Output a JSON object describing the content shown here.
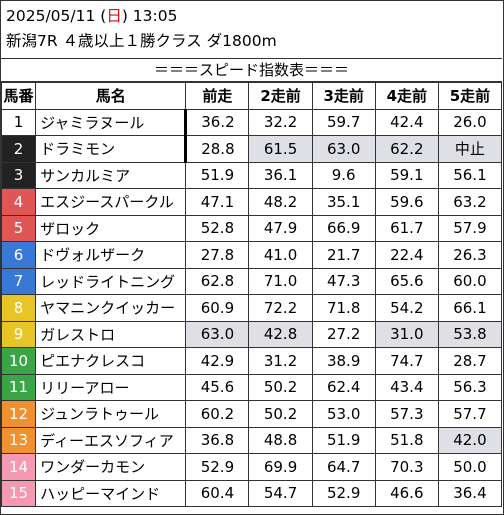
{
  "header": {
    "date": "2025/05/11 (",
    "day": "日",
    "time_suffix": ") 13:05",
    "race": "新潟7R ４歳以上１勝クラス ダ1800m"
  },
  "title": "＝＝＝スピード指数表＝＝＝",
  "columns": [
    "馬番",
    "馬名",
    "前走",
    "2走前",
    "3走前",
    "4走前",
    "5走前"
  ],
  "colors": {
    "frame_1": "#ffffff",
    "frame_2": "#222222",
    "frame_3": "#d23434",
    "frame_4": "#2f6fd1",
    "frame_5": "#e6c21c",
    "frame_6": "#2e9b3a",
    "frame_7": "#ee8a2a",
    "frame_8": "#f28aa4",
    "highlight": "#dfe0e6"
  },
  "rows": [
    {
      "no": "1",
      "name": "ジャミラヌール",
      "v": [
        "36.2",
        "32.2",
        "59.7",
        "42.4",
        "26.0"
      ],
      "hl": [],
      "bar": true,
      "bg": "#ffffff",
      "fg": "#000000"
    },
    {
      "no": "2",
      "name": "ドラミモン",
      "v": [
        "28.8",
        "61.5",
        "63.0",
        "62.2",
        "中止"
      ],
      "hl": [
        1,
        2,
        3,
        4
      ],
      "bar": true,
      "bg": "#222222",
      "fg": "#ffffff"
    },
    {
      "no": "3",
      "name": "サンカルミア",
      "v": [
        "51.9",
        "36.1",
        "9.6",
        "59.1",
        "56.1"
      ],
      "hl": [],
      "bar": false,
      "bg": "#222222",
      "fg": "#ffffff"
    },
    {
      "no": "4",
      "name": "エスジースパークル",
      "v": [
        "47.1",
        "48.2",
        "35.1",
        "59.6",
        "63.2"
      ],
      "hl": [],
      "bar": false,
      "bg": "#e05656",
      "fg": "#ffffff"
    },
    {
      "no": "5",
      "name": "ザロック",
      "v": [
        "52.8",
        "47.9",
        "66.9",
        "61.7",
        "57.9"
      ],
      "hl": [],
      "bar": false,
      "bg": "#e05656",
      "fg": "#ffffff"
    },
    {
      "no": "6",
      "name": "ドヴォルザーク",
      "v": [
        "27.8",
        "41.0",
        "21.7",
        "22.4",
        "26.3"
      ],
      "hl": [],
      "bar": false,
      "bg": "#3a78d6",
      "fg": "#ffffff"
    },
    {
      "no": "7",
      "name": "レッドライトニング",
      "v": [
        "62.8",
        "71.0",
        "47.3",
        "65.6",
        "60.0"
      ],
      "hl": [],
      "bar": false,
      "bg": "#3a78d6",
      "fg": "#ffffff"
    },
    {
      "no": "8",
      "name": "ヤマニンクイッカー",
      "v": [
        "60.9",
        "72.2",
        "71.8",
        "54.2",
        "66.1"
      ],
      "hl": [],
      "bar": false,
      "bg": "#e8c527",
      "fg": "#ffffff"
    },
    {
      "no": "9",
      "name": "ガレストロ",
      "v": [
        "63.0",
        "42.8",
        "27.2",
        "31.0",
        "53.8"
      ],
      "hl": [
        0,
        1,
        3,
        4
      ],
      "bar": false,
      "bg": "#e8c527",
      "fg": "#ffffff"
    },
    {
      "no": "10",
      "name": "ピエナクレスコ",
      "v": [
        "42.9",
        "31.2",
        "38.9",
        "74.7",
        "28.7"
      ],
      "hl": [],
      "bar": false,
      "bg": "#3aa547",
      "fg": "#ffffff"
    },
    {
      "no": "11",
      "name": "リリーアロー",
      "v": [
        "45.6",
        "50.2",
        "62.4",
        "43.4",
        "56.3"
      ],
      "hl": [],
      "bar": false,
      "bg": "#3aa547",
      "fg": "#ffffff"
    },
    {
      "no": "12",
      "name": "ジュンラトゥール",
      "v": [
        "60.2",
        "50.2",
        "53.0",
        "57.3",
        "57.7"
      ],
      "hl": [],
      "bar": false,
      "bg": "#f0902f",
      "fg": "#ffffff"
    },
    {
      "no": "13",
      "name": "ディーエスソフィア",
      "v": [
        "36.8",
        "48.8",
        "51.9",
        "51.8",
        "42.0"
      ],
      "hl": [
        4
      ],
      "bar": false,
      "bg": "#f0902f",
      "fg": "#ffffff"
    },
    {
      "no": "14",
      "name": "ワンダーカモン",
      "v": [
        "52.9",
        "69.9",
        "64.7",
        "70.3",
        "50.0"
      ],
      "hl": [],
      "bar": false,
      "bg": "#f39ab0",
      "fg": "#ffffff"
    },
    {
      "no": "15",
      "name": "ハッピーマインド",
      "v": [
        "60.4",
        "54.7",
        "52.9",
        "46.6",
        "36.4"
      ],
      "hl": [],
      "bar": false,
      "bg": "#f39ab0",
      "fg": "#ffffff"
    }
  ]
}
